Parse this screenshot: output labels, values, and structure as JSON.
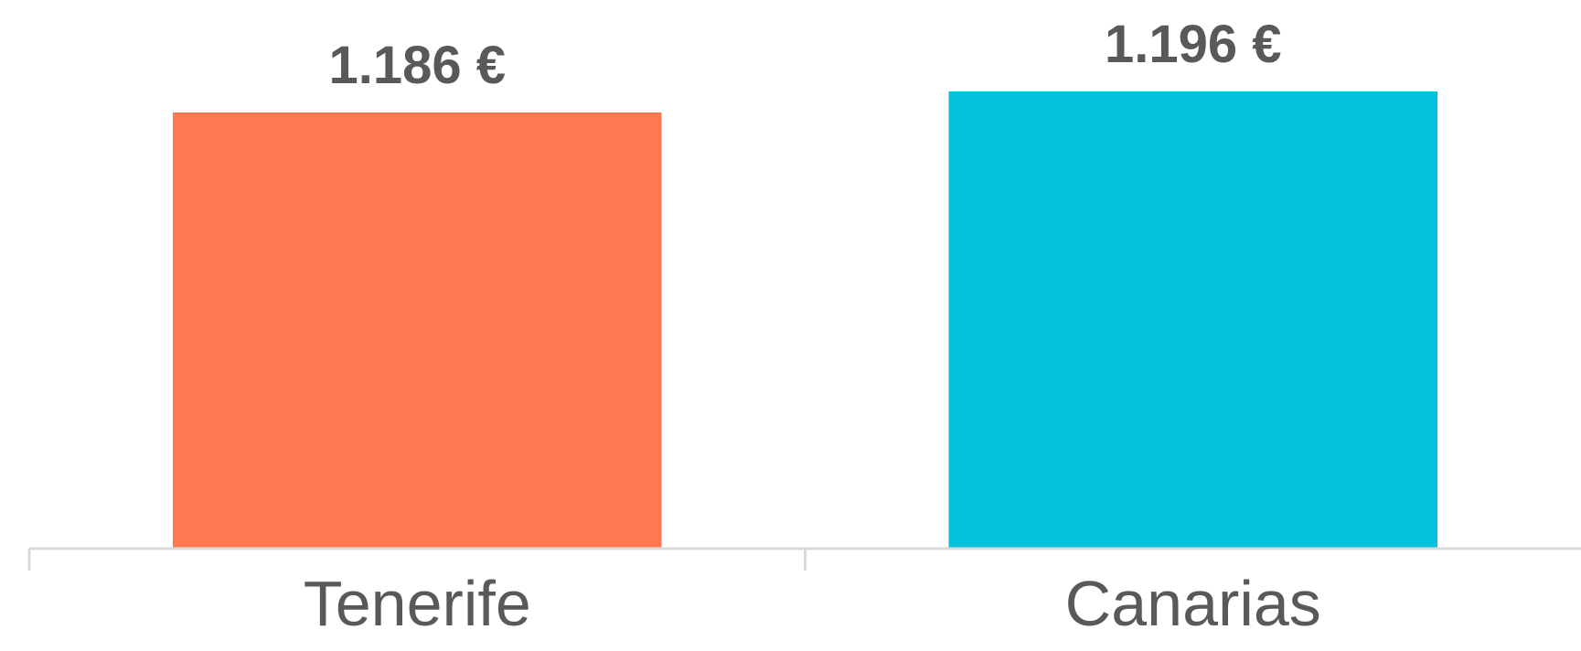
{
  "chart_data": {
    "type": "bar",
    "categories": [
      "Tenerife",
      "Canarias"
    ],
    "values": [
      1186,
      1196
    ],
    "value_labels": [
      "1.186 €",
      "1.196 €"
    ],
    "colors": [
      "#FF7852",
      "#05C2DF"
    ],
    "axis_color": "#D9D9D9",
    "label_color": "#595959",
    "title": "",
    "xlabel": "",
    "ylabel": "",
    "grid": false,
    "legend": "none"
  }
}
